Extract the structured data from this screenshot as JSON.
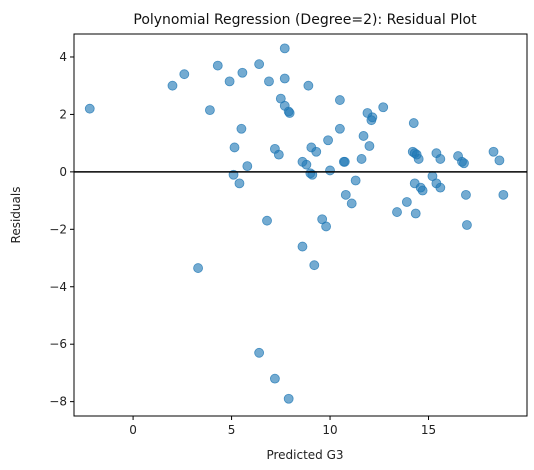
{
  "chart_data": {
    "type": "scatter",
    "title": "Polynomial Regression (Degree=2): Residual Plot",
    "xlabel": "Predicted G3",
    "ylabel": "Residuals",
    "xlim": [
      -3.0,
      20.0
    ],
    "ylim": [
      -8.5,
      4.8
    ],
    "xticks": [
      0,
      5,
      10,
      15
    ],
    "yticks": [
      -8,
      -6,
      -4,
      -2,
      0,
      2,
      4
    ],
    "grid": false,
    "reference_line_y": 0,
    "point_color": "#1f77b4",
    "line_color": "#000000",
    "points": [
      {
        "x": -2.2,
        "y": 2.2
      },
      {
        "x": 2.0,
        "y": 3.0
      },
      {
        "x": 2.6,
        "y": 3.4
      },
      {
        "x": 3.3,
        "y": -3.35
      },
      {
        "x": 3.9,
        "y": 2.15
      },
      {
        "x": 4.3,
        "y": 3.7
      },
      {
        "x": 4.9,
        "y": 3.15
      },
      {
        "x": 5.1,
        "y": -0.1
      },
      {
        "x": 5.15,
        "y": 0.85
      },
      {
        "x": 5.4,
        "y": -0.4
      },
      {
        "x": 5.5,
        "y": 1.5
      },
      {
        "x": 5.55,
        "y": 3.45
      },
      {
        "x": 5.8,
        "y": 0.2
      },
      {
        "x": 6.4,
        "y": 3.75
      },
      {
        "x": 6.4,
        "y": -6.3
      },
      {
        "x": 6.8,
        "y": -1.7
      },
      {
        "x": 6.9,
        "y": 3.15
      },
      {
        "x": 7.2,
        "y": 0.8
      },
      {
        "x": 7.2,
        "y": -7.2
      },
      {
        "x": 7.4,
        "y": 0.6
      },
      {
        "x": 7.5,
        "y": 2.55
      },
      {
        "x": 7.7,
        "y": 2.3
      },
      {
        "x": 7.7,
        "y": 4.3
      },
      {
        "x": 7.7,
        "y": 3.25
      },
      {
        "x": 7.9,
        "y": 2.1
      },
      {
        "x": 7.95,
        "y": 2.05
      },
      {
        "x": 7.9,
        "y": -7.9
      },
      {
        "x": 8.6,
        "y": -2.6
      },
      {
        "x": 8.6,
        "y": 0.35
      },
      {
        "x": 8.8,
        "y": 0.25
      },
      {
        "x": 8.9,
        "y": 3.0
      },
      {
        "x": 9.0,
        "y": -0.05
      },
      {
        "x": 9.05,
        "y": 0.85
      },
      {
        "x": 9.1,
        "y": -0.1
      },
      {
        "x": 9.2,
        "y": -3.25
      },
      {
        "x": 9.3,
        "y": 0.7
      },
      {
        "x": 9.6,
        "y": -1.65
      },
      {
        "x": 9.8,
        "y": -1.9
      },
      {
        "x": 9.9,
        "y": 1.1
      },
      {
        "x": 10.0,
        "y": 0.05
      },
      {
        "x": 10.5,
        "y": 2.5
      },
      {
        "x": 10.5,
        "y": 1.5
      },
      {
        "x": 10.7,
        "y": 0.35
      },
      {
        "x": 10.75,
        "y": 0.35
      },
      {
        "x": 10.8,
        "y": -0.8
      },
      {
        "x": 11.1,
        "y": -1.1
      },
      {
        "x": 11.3,
        "y": -0.3
      },
      {
        "x": 11.6,
        "y": 0.45
      },
      {
        "x": 11.7,
        "y": 1.25
      },
      {
        "x": 11.9,
        "y": 2.05
      },
      {
        "x": 12.0,
        "y": 0.9
      },
      {
        "x": 12.1,
        "y": 1.8
      },
      {
        "x": 12.15,
        "y": 1.9
      },
      {
        "x": 12.7,
        "y": 2.25
      },
      {
        "x": 13.4,
        "y": -1.4
      },
      {
        "x": 13.9,
        "y": -1.05
      },
      {
        "x": 14.2,
        "y": 0.7
      },
      {
        "x": 14.25,
        "y": 1.7
      },
      {
        "x": 14.3,
        "y": -0.4
      },
      {
        "x": 14.3,
        "y": 0.65
      },
      {
        "x": 14.4,
        "y": 0.6
      },
      {
        "x": 14.35,
        "y": -1.45
      },
      {
        "x": 14.5,
        "y": 0.45
      },
      {
        "x": 14.6,
        "y": -0.55
      },
      {
        "x": 14.7,
        "y": -0.65
      },
      {
        "x": 15.2,
        "y": -0.15
      },
      {
        "x": 15.4,
        "y": 0.65
      },
      {
        "x": 15.4,
        "y": -0.4
      },
      {
        "x": 15.6,
        "y": 0.45
      },
      {
        "x": 15.6,
        "y": -0.55
      },
      {
        "x": 16.5,
        "y": 0.55
      },
      {
        "x": 16.7,
        "y": 0.35
      },
      {
        "x": 16.8,
        "y": 0.3
      },
      {
        "x": 16.9,
        "y": -0.8
      },
      {
        "x": 16.95,
        "y": -1.85
      },
      {
        "x": 18.3,
        "y": 0.7
      },
      {
        "x": 18.6,
        "y": 0.4
      },
      {
        "x": 18.8,
        "y": -0.8
      }
    ]
  }
}
